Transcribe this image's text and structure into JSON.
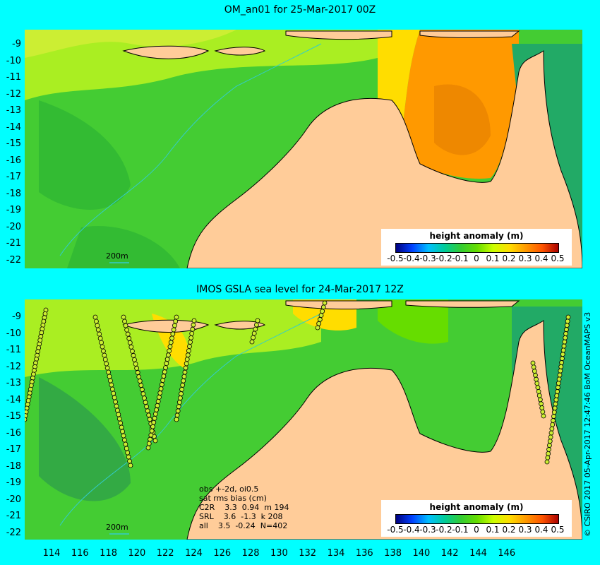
{
  "top_panel": {
    "title": "OM_an01 for 25-Mar-2017 00Z",
    "scale_label": "200m"
  },
  "bottom_panel": {
    "title": "IMOS GSLA sea level  for 24-Mar-2017 12Z",
    "scale_label": "200m"
  },
  "colorbar": {
    "title": "height anomaly (m)",
    "ticks": [
      "-0.5",
      "-0.4",
      "-0.3",
      "-0.2",
      "-0.1",
      "0",
      "0.1",
      "0.2",
      "0.3",
      "0.4",
      "0.5"
    ],
    "colors": [
      "#00007f",
      "#0040ff",
      "#00bfff",
      "#00cc99",
      "#33cc33",
      "#66dd00",
      "#ccff00",
      "#ffdd00",
      "#ff9900",
      "#ff5500",
      "#aa0000"
    ]
  },
  "y_ticks": [
    "-9",
    "-10",
    "-11",
    "-12",
    "-13",
    "-14",
    "-15",
    "-16",
    "-17",
    "-18",
    "-19",
    "-20",
    "-21",
    "-22"
  ],
  "x_ticks": [
    "114",
    "116",
    "118",
    "120",
    "122",
    "124",
    "126",
    "128",
    "130",
    "132",
    "134",
    "136",
    "138",
    "140",
    "142",
    "144",
    "146"
  ],
  "stats": {
    "line1": "obs +-2d, oi0.5",
    "line2": "sat rms bias (cm)",
    "line3": "C2R    3.3  0.94  m 194",
    "line4": "SRL    3.6  -1.3  k 208",
    "line5": "all    3.5  -0.24  N=402"
  },
  "credit": "© CSIRO 2017  05-Apr-2017 12:47:46 BoM OceanMAPS v3",
  "colors": {
    "land": "#ffcc99",
    "frame": "#00ffff",
    "coast": "#000000"
  }
}
